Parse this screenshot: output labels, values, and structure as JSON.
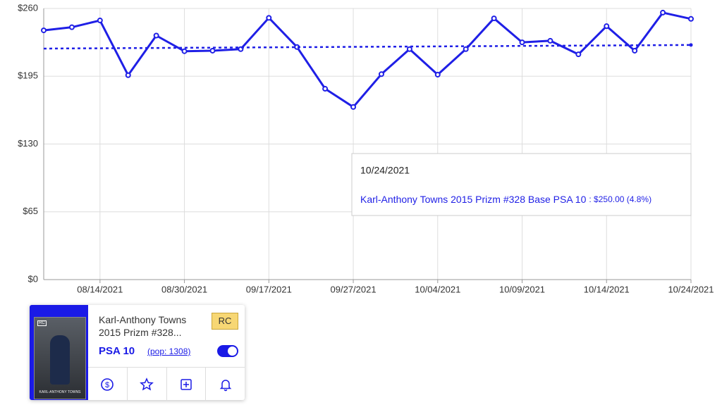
{
  "chart_data": {
    "type": "line",
    "categories": [
      null,
      null,
      "08/14/2021",
      null,
      null,
      "08/30/2021",
      null,
      null,
      "09/17/2021",
      null,
      null,
      "09/27/2021",
      null,
      null,
      "10/04/2021",
      null,
      null,
      "10/09/2021",
      null,
      null,
      "10/14/2021",
      null,
      null,
      "10/24/2021"
    ],
    "series": [
      {
        "name": "Karl-Anthony Towns 2015 Prizm #328 Base PSA 10",
        "color": "#1f1fe6",
        "values": [
          239,
          242,
          248.5,
          196,
          234,
          219,
          219.5,
          221,
          251,
          223,
          183,
          165.5,
          197,
          221,
          196.5,
          221,
          250.5,
          227.5,
          229,
          216,
          243,
          219.5,
          256,
          250
        ]
      },
      {
        "color": "#1f1fe6",
        "dashed": true,
        "values": [
          221.5,
          221.7,
          221.8,
          222,
          222.1,
          222.3,
          222.4,
          222.6,
          222.7,
          222.9,
          223,
          223.2,
          223.3,
          223.5,
          223.6,
          223.8,
          223.9,
          224.1,
          224.2,
          224.4,
          224.5,
          224.7,
          224.8,
          225
        ]
      }
    ],
    "ylim": [
      0,
      260
    ],
    "yticks": [
      {
        "value": 0,
        "label": "$0"
      },
      {
        "value": 65,
        "label": "$65"
      },
      {
        "value": 130,
        "label": "$130"
      },
      {
        "value": 195,
        "label": "$195"
      },
      {
        "value": 260,
        "label": "$260"
      }
    ],
    "grid": true,
    "tooltip": {
      "date": "10/24/2021",
      "value_label": ": $250.00 (4.8%)"
    }
  },
  "card": {
    "title": "Karl-Anthony Towns 2015 Prizm #328...",
    "badge": "RC",
    "grade": "PSA 10",
    "pop": "(pop: 1308)",
    "image_caption": "KARL-ANTHONY TOWNS",
    "image_badge": "RC"
  }
}
